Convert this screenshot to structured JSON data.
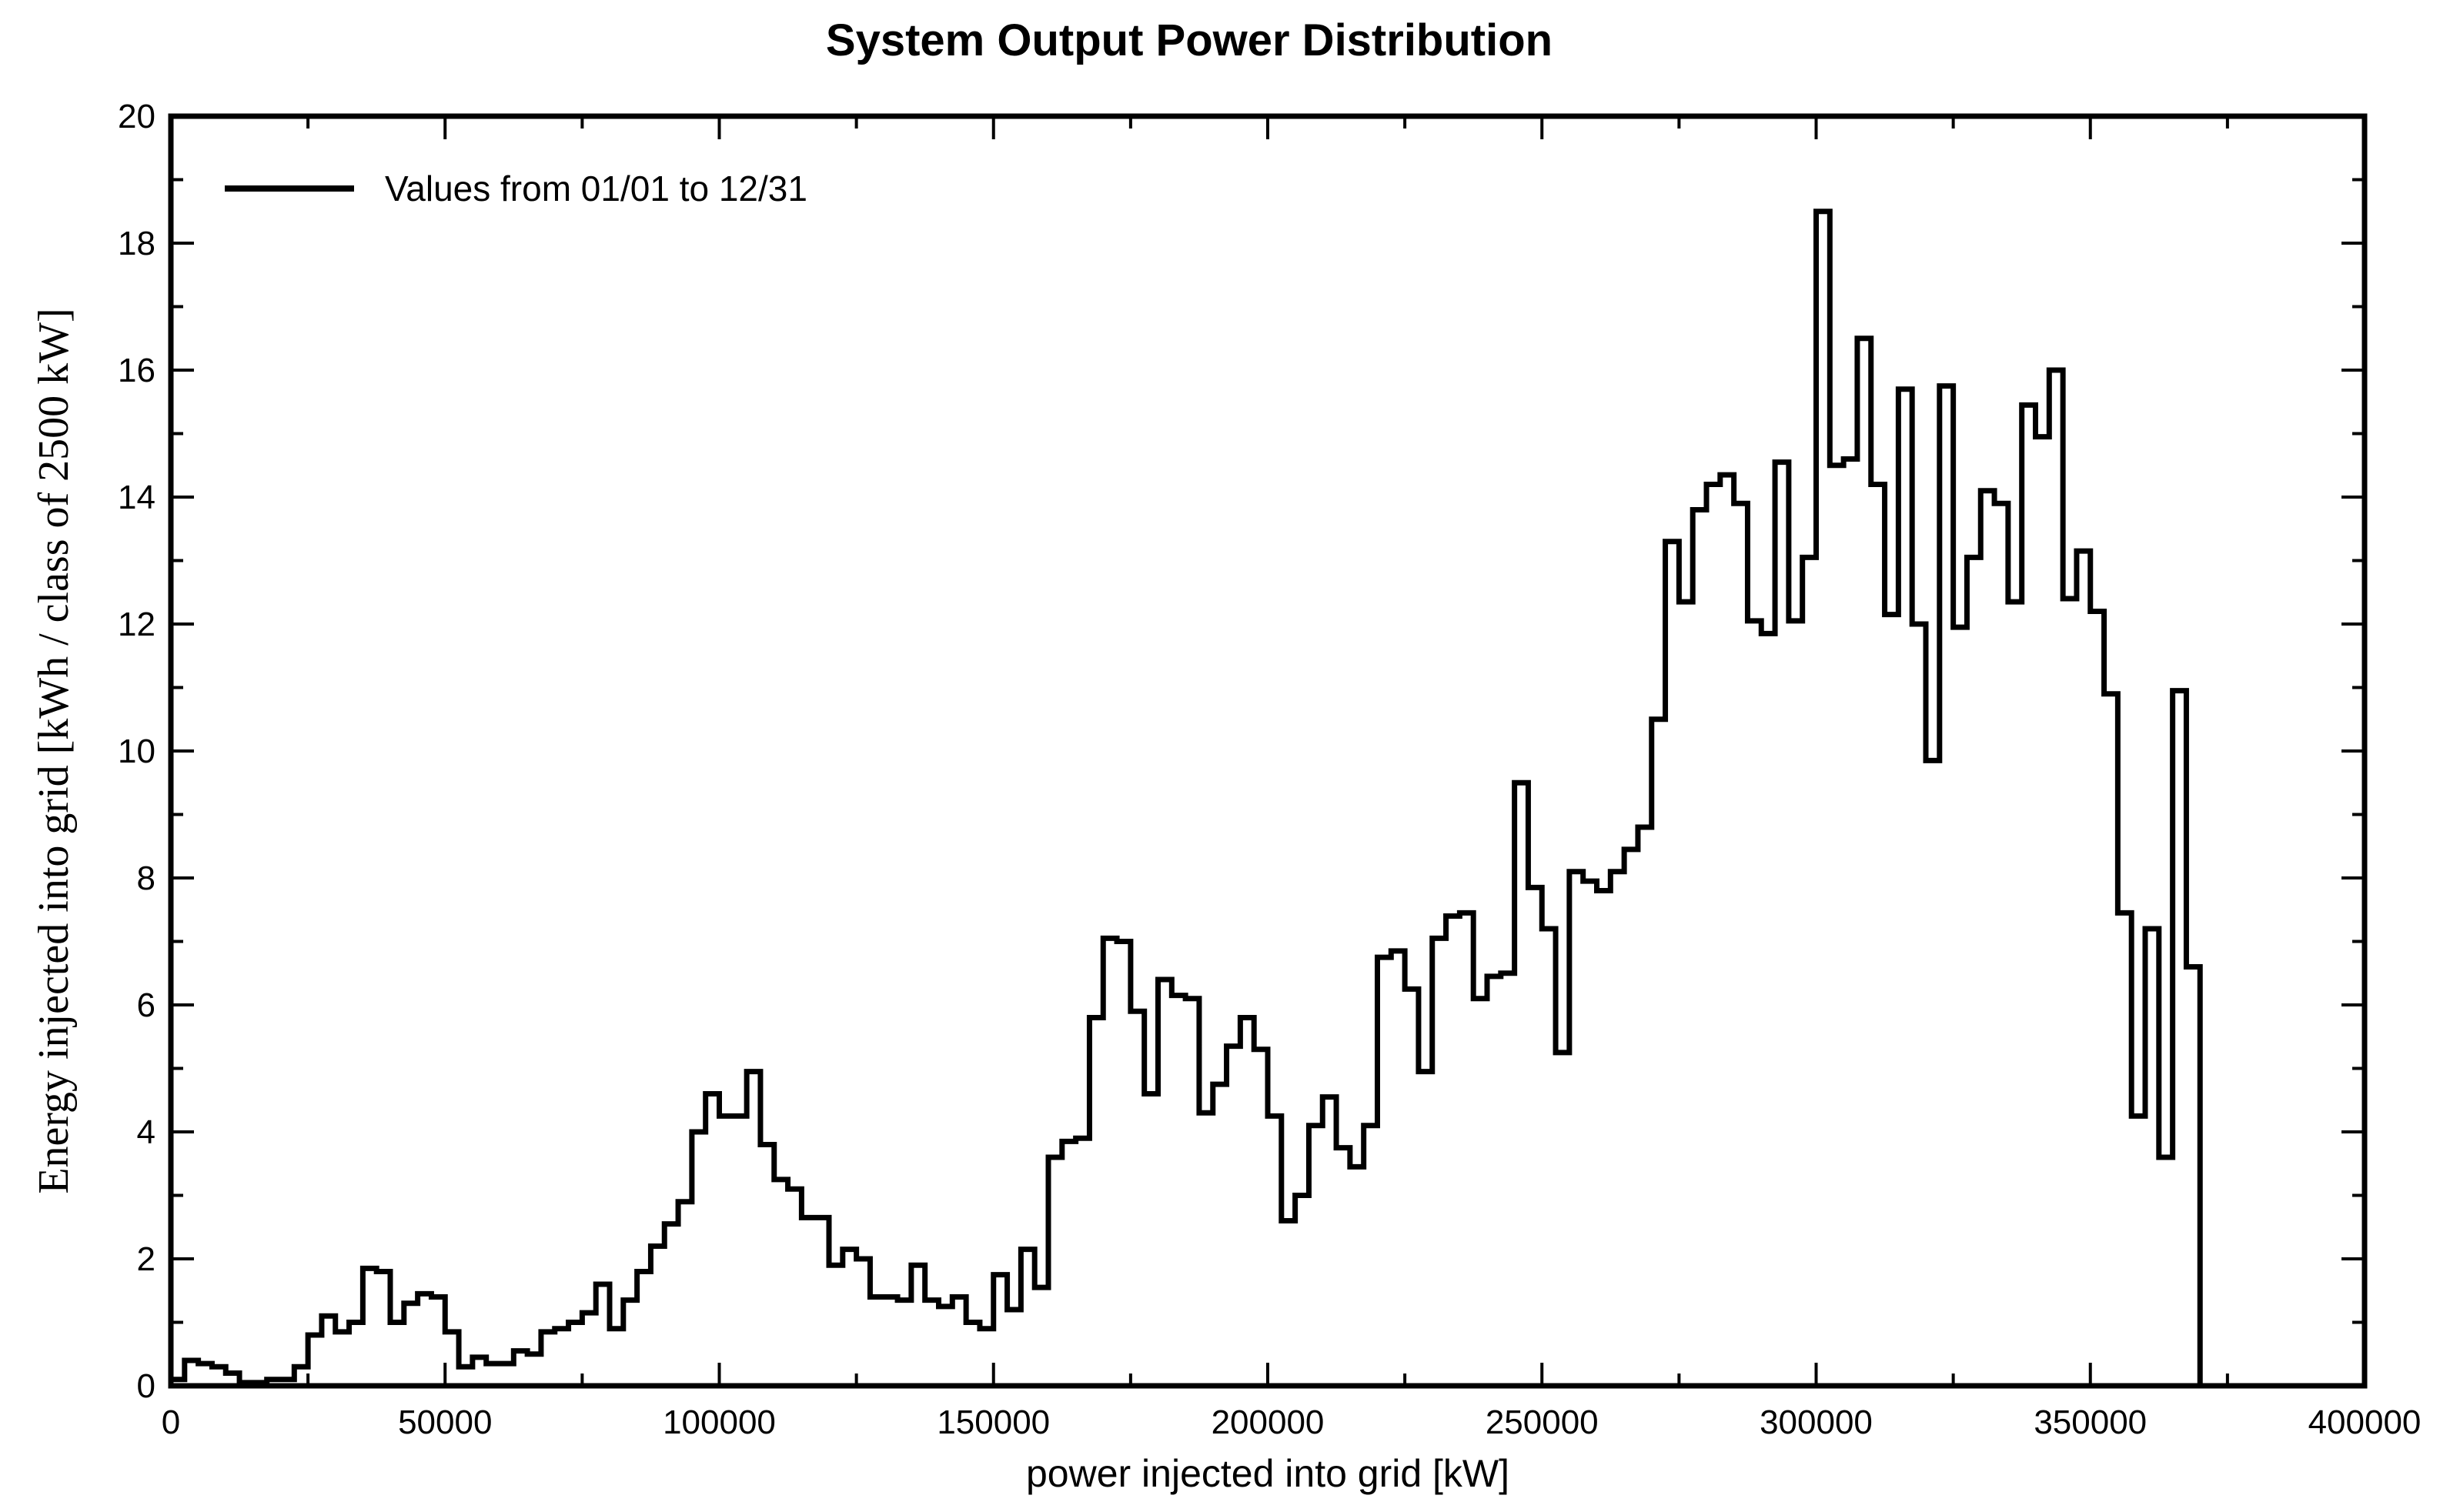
{
  "chart_data": {
    "type": "line",
    "style": "step",
    "title": "System Output Power Distribution",
    "xlabel": "power injected into grid [kW]",
    "ylabel": "Energy injected into grid [kWh / class of 2500 kW]",
    "xlim": [
      0,
      400000
    ],
    "ylim": [
      0,
      20
    ],
    "xticks": [
      0,
      50000,
      100000,
      150000,
      200000,
      250000,
      300000,
      350000,
      400000
    ],
    "yticks": [
      0,
      2,
      4,
      6,
      8,
      10,
      12,
      14,
      16,
      18,
      20
    ],
    "grid": false,
    "legend_position": "top-left",
    "bin_width": 2500,
    "series": [
      {
        "name": "Values from 01/01 to 12/31",
        "color": "#000000",
        "x_start": 0,
        "values": [
          0.1,
          0.4,
          0.35,
          0.3,
          0.2,
          0.05,
          0.05,
          0.1,
          0.1,
          0.3,
          0.8,
          1.1,
          0.85,
          1.0,
          1.85,
          1.8,
          1.0,
          1.3,
          1.45,
          1.4,
          0.85,
          0.3,
          0.45,
          0.35,
          0.35,
          0.55,
          0.5,
          0.85,
          0.9,
          1.0,
          1.15,
          1.6,
          0.9,
          1.35,
          1.8,
          2.2,
          2.55,
          2.9,
          4.0,
          4.6,
          4.25,
          4.25,
          4.95,
          3.8,
          3.25,
          3.1,
          2.65,
          2.65,
          1.9,
          2.15,
          2.0,
          1.4,
          1.4,
          1.35,
          1.9,
          1.35,
          1.25,
          1.4,
          1.0,
          0.9,
          1.75,
          1.2,
          2.15,
          1.55,
          3.6,
          3.85,
          3.9,
          5.8,
          7.05,
          7.0,
          5.9,
          4.6,
          6.4,
          6.15,
          6.1,
          4.3,
          4.75,
          5.35,
          5.8,
          5.3,
          4.25,
          2.6,
          3.0,
          4.1,
          4.55,
          3.75,
          3.45,
          4.1,
          6.75,
          6.85,
          6.25,
          4.95,
          7.05,
          7.4,
          7.45,
          6.1,
          6.45,
          6.5,
          9.5,
          7.85,
          7.2,
          5.25,
          8.1,
          7.95,
          7.8,
          8.1,
          8.45,
          8.8,
          10.5,
          13.3,
          12.35,
          13.8,
          14.2,
          14.35,
          13.9,
          12.05,
          11.85,
          14.55,
          12.05,
          13.05,
          18.5,
          14.5,
          14.6,
          16.5,
          14.2,
          12.15,
          15.7,
          12.0,
          9.85,
          15.75,
          11.95,
          13.05,
          14.1,
          13.9,
          12.35,
          15.45,
          14.95,
          16.0,
          12.4,
          13.15,
          12.2,
          10.9,
          7.45,
          4.25,
          7.2,
          3.6,
          10.95,
          6.6,
          0.0
        ]
      }
    ]
  }
}
